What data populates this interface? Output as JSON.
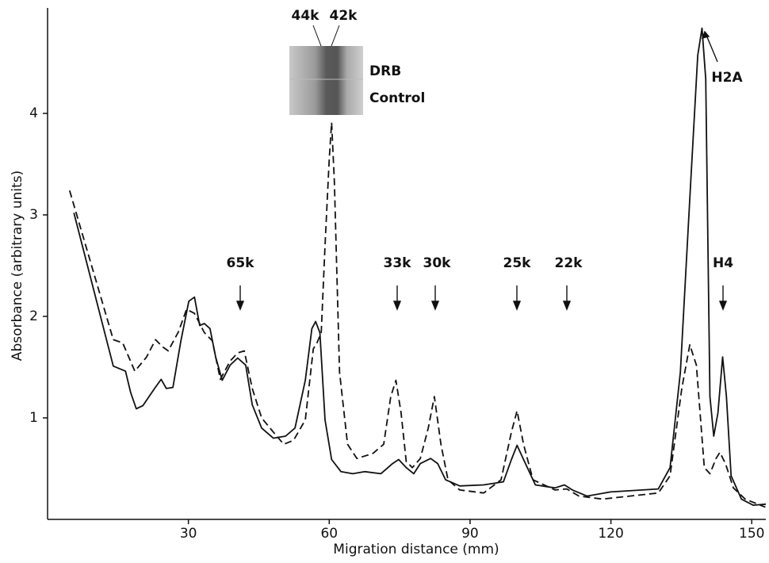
{
  "chart_data": {
    "type": "line",
    "x_label": "Migration distance (mm)",
    "y_label": "Absorbance (arbitrary units)",
    "xlim": [
      0,
      153
    ],
    "ylim": [
      0,
      5
    ],
    "xticks": [
      30,
      60,
      90,
      120,
      150
    ],
    "yticks": [
      1,
      2,
      3,
      4
    ],
    "band_labels": [
      "44k",
      "42k"
    ],
    "inset_labels": [
      "DRB",
      "Control"
    ],
    "annotations": [
      "65k",
      "33k",
      "30k",
      "25k",
      "22k",
      "H4",
      "H2A"
    ],
    "series": [
      {
        "color": "#111111",
        "line_style": "solid",
        "x": [
          5.6,
          14.0,
          16.6,
          17.7,
          18.9,
          20.3,
          22.8,
          24.2,
          25.3,
          26.7,
          28.4,
          30.1,
          31.3,
          32.4,
          33.4,
          34.6,
          35.8,
          37.2,
          38.9,
          40.5,
          42.2,
          43.6,
          45.6,
          48.1,
          50.7,
          52.7,
          54.9,
          56.3,
          57.1,
          58.0,
          59.1,
          60.5,
          62.5,
          65.0,
          67.6,
          71.0,
          73.5,
          74.8,
          76.4,
          78.0,
          79.4,
          81.6,
          83.1,
          84.8,
          87.8,
          92.9,
          97.1,
          98.8,
          100,
          101.4,
          103.9,
          108.1,
          110.1,
          111.8,
          114.9,
          119.9,
          130.1,
          132.6,
          134.8,
          136.8,
          138.5,
          139.4,
          140.2,
          141.1,
          141.9,
          142.8,
          143.8,
          144.6,
          145.6,
          147.8,
          150.3,
          153
        ],
        "values": [
          3.02,
          1.51,
          1.46,
          1.25,
          1.09,
          1.12,
          1.29,
          1.38,
          1.29,
          1.3,
          1.76,
          2.15,
          2.19,
          1.91,
          1.93,
          1.88,
          1.6,
          1.37,
          1.52,
          1.59,
          1.52,
          1.13,
          0.9,
          0.8,
          0.82,
          0.9,
          1.37,
          1.88,
          1.95,
          1.84,
          0.98,
          0.59,
          0.47,
          0.45,
          0.47,
          0.45,
          0.55,
          0.59,
          0.51,
          0.45,
          0.55,
          0.6,
          0.55,
          0.39,
          0.33,
          0.34,
          0.37,
          0.59,
          0.73,
          0.59,
          0.34,
          0.31,
          0.34,
          0.29,
          0.23,
          0.27,
          0.3,
          0.51,
          1.45,
          3.16,
          4.57,
          4.84,
          4.34,
          1.21,
          0.82,
          1.05,
          1.6,
          1.21,
          0.43,
          0.2,
          0.14,
          0.15
        ]
      },
      {
        "color": "#111111",
        "line_style": "dashed",
        "x": [
          4.7,
          14.0,
          16.0,
          18.6,
          21.1,
          23.0,
          24.5,
          25.7,
          27.9,
          29.6,
          31.3,
          33.4,
          35.1,
          36.8,
          38.9,
          40.5,
          41.9,
          43.6,
          45.6,
          48.1,
          50.3,
          52.4,
          54.9,
          56.6,
          57.4,
          58.3,
          59.1,
          60.0,
          60.5,
          61.1,
          62.2,
          63.9,
          65.9,
          69.3,
          71.6,
          73.1,
          74.2,
          75.3,
          76.4,
          77.7,
          79.4,
          81.1,
          82.4,
          83.8,
          85.3,
          87.8,
          92.9,
          96.6,
          98.8,
          100,
          101.4,
          103.4,
          108.1,
          110.6,
          113.2,
          118.2,
          130.1,
          132.6,
          135.1,
          136.8,
          138.2,
          139.9,
          141.1,
          142.4,
          143.2,
          144.4,
          146.1,
          148.6,
          152.9
        ],
        "values": [
          3.24,
          1.77,
          1.74,
          1.46,
          1.6,
          1.77,
          1.7,
          1.66,
          1.85,
          2.07,
          2.03,
          1.84,
          1.76,
          1.38,
          1.56,
          1.64,
          1.66,
          1.29,
          1.0,
          0.86,
          0.74,
          0.78,
          0.98,
          1.68,
          1.74,
          1.84,
          2.7,
          3.55,
          3.91,
          3.32,
          1.45,
          0.74,
          0.6,
          0.65,
          0.74,
          1.21,
          1.37,
          1.05,
          0.57,
          0.51,
          0.6,
          0.9,
          1.21,
          0.74,
          0.39,
          0.29,
          0.26,
          0.39,
          0.86,
          1.07,
          0.74,
          0.39,
          0.29,
          0.3,
          0.23,
          0.2,
          0.26,
          0.43,
          1.29,
          1.72,
          1.52,
          0.51,
          0.45,
          0.6,
          0.66,
          0.55,
          0.31,
          0.2,
          0.12
        ]
      }
    ]
  }
}
